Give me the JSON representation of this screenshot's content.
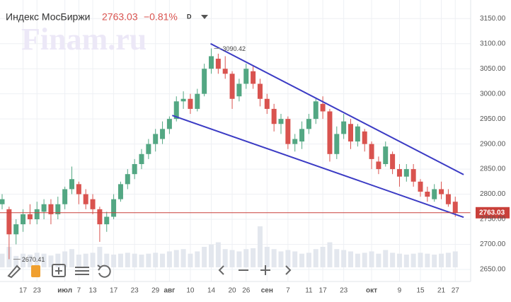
{
  "header": {
    "title": "Индекс МосБиржи",
    "price": "2763.03",
    "change": "−0.81%",
    "interval": "D",
    "watermark": "Finam.ru"
  },
  "chart_data": {
    "type": "candlestick",
    "categories": [
      null,
      null,
      null,
      "17",
      null,
      "23",
      null,
      null,
      null,
      "июл",
      null,
      "7",
      null,
      "13",
      null,
      null,
      "17",
      null,
      null,
      "23",
      null,
      null,
      "29",
      null,
      "авг",
      null,
      null,
      "10",
      null,
      null,
      "14",
      null,
      null,
      "20",
      null,
      "26",
      null,
      null,
      "сен",
      null,
      null,
      "7",
      null,
      null,
      "11",
      null,
      "17",
      null,
      null,
      "23",
      null,
      null,
      null,
      "окт",
      null,
      null,
      null,
      "9",
      null,
      null,
      "15",
      null,
      null,
      "21",
      null,
      "27"
    ],
    "open": [
      2780,
      2770,
      2720,
      2740,
      2760,
      2750,
      2765,
      2780,
      2760,
      2780,
      2810,
      2820,
      2800,
      2790,
      2770,
      2740,
      2755,
      2790,
      2820,
      2840,
      2860,
      2880,
      2900,
      2910,
      2930,
      2950,
      2985,
      2990,
      2970,
      3000,
      3050,
      3070,
      3050,
      3040,
      2995,
      3020,
      3045,
      3020,
      2990,
      2970,
      2940,
      2950,
      2900,
      2905,
      2930,
      2950,
      2980,
      2965,
      2880,
      2920,
      2940,
      2905,
      2925,
      2900,
      2865,
      2860,
      2880,
      2850,
      2835,
      2850,
      2825,
      2805,
      2790,
      2810,
      2800,
      2785
    ],
    "high": [
      2800,
      2775,
      2750,
      2770,
      2780,
      2785,
      2790,
      2790,
      2795,
      2815,
      2855,
      2825,
      2810,
      2800,
      2775,
      2765,
      2800,
      2825,
      2850,
      2870,
      2890,
      2910,
      2930,
      2945,
      2955,
      2995,
      3005,
      3000,
      3010,
      3060,
      3090.42,
      3080,
      3075,
      3045,
      3030,
      3060,
      3055,
      3030,
      3000,
      2980,
      2960,
      2955,
      2920,
      2945,
      2960,
      2990,
      2995,
      2970,
      2935,
      2960,
      2950,
      2940,
      2930,
      2905,
      2875,
      2905,
      2885,
      2860,
      2860,
      2860,
      2830,
      2815,
      2820,
      2825,
      2810,
      2795
    ],
    "low": [
      2770,
      2670.41,
      2700,
      2725,
      2740,
      2740,
      2750,
      2740,
      2750,
      2770,
      2800,
      2780,
      2770,
      2760,
      2705,
      2725,
      2750,
      2785,
      2810,
      2830,
      2850,
      2870,
      2885,
      2900,
      2920,
      2945,
      2970,
      2960,
      2965,
      2995,
      3040,
      3040,
      3030,
      2970,
      2985,
      3010,
      3010,
      2975,
      2960,
      2925,
      2920,
      2890,
      2885,
      2890,
      2920,
      2940,
      2950,
      2865,
      2870,
      2910,
      2890,
      2895,
      2885,
      2850,
      2840,
      2855,
      2840,
      2815,
      2825,
      2815,
      2795,
      2785,
      2785,
      2790,
      2775,
      2755
    ],
    "close": [
      2790,
      2720,
      2740,
      2760,
      2750,
      2770,
      2780,
      2760,
      2780,
      2810,
      2830,
      2800,
      2780,
      2770,
      2740,
      2755,
      2790,
      2820,
      2840,
      2860,
      2880,
      2900,
      2920,
      2930,
      2950,
      2985,
      2990,
      2970,
      3000,
      3050,
      3075,
      3050,
      3040,
      2990,
      3020,
      3050,
      3020,
      2990,
      2970,
      2940,
      2950,
      2900,
      2910,
      2930,
      2950,
      2985,
      2965,
      2880,
      2920,
      2945,
      2905,
      2935,
      2900,
      2870,
      2850,
      2895,
      2850,
      2835,
      2850,
      2825,
      2805,
      2795,
      2810,
      2800,
      2780,
      2763.03
    ],
    "volume": [
      30,
      45,
      25,
      30,
      28,
      32,
      30,
      26,
      30,
      35,
      40,
      28,
      30,
      32,
      45,
      30,
      28,
      30,
      32,
      30,
      28,
      30,
      32,
      30,
      35,
      38,
      40,
      30,
      35,
      45,
      50,
      55,
      40,
      38,
      35,
      40,
      42,
      90,
      45,
      40,
      35,
      38,
      35,
      30,
      32,
      40,
      45,
      55,
      40,
      38,
      35,
      30,
      32,
      35,
      30,
      38,
      32,
      30,
      28,
      30,
      32,
      30,
      28,
      30,
      32,
      35
    ],
    "up_color": "#53a783",
    "down_color": "#d9534f",
    "volume_color": "#e3e7ee",
    "ylim": [
      2626,
      3187
    ],
    "yticks": [
      {
        "value": 2650,
        "label": "2650.00"
      },
      {
        "value": 2700,
        "label": "2700.00"
      },
      {
        "value": 2750,
        "label": "2750.00"
      },
      {
        "value": 2800,
        "label": "2800.00"
      },
      {
        "value": 2850,
        "label": "2850.00"
      },
      {
        "value": 2900,
        "label": "2900.00"
      },
      {
        "value": 2950,
        "label": "2950.00"
      },
      {
        "value": 3000,
        "label": "3000.00"
      },
      {
        "value": 3050,
        "label": "3050.00"
      },
      {
        "value": 3100,
        "label": "3100.00"
      },
      {
        "value": 3150,
        "label": "3150.00"
      }
    ],
    "grid": true,
    "trendlines": [
      {
        "x": [
          29.9,
          66.2
        ],
        "y": [
          3100,
          2839
        ]
      },
      {
        "x": [
          24.4,
          66.2
        ],
        "y": [
          2957,
          2754
        ]
      }
    ],
    "trendline_color": "#3b3bc4",
    "last_price": 2763.03,
    "last_price_color": "#c9403a"
  }
}
